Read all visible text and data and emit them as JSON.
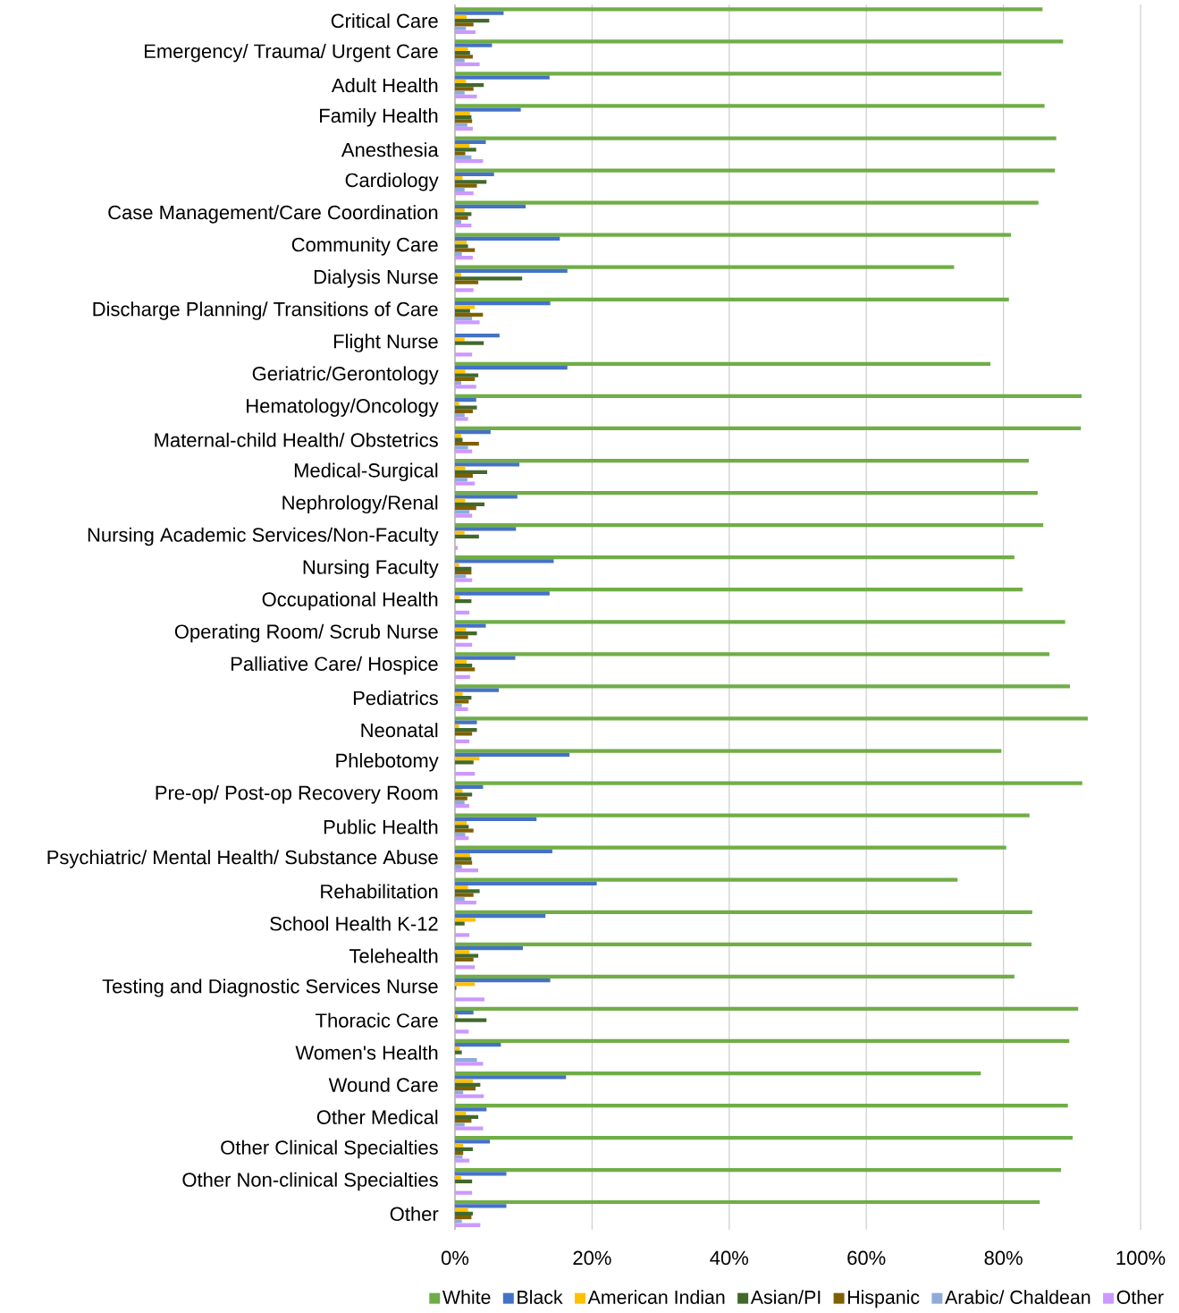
{
  "chart_data": {
    "type": "bar",
    "orientation": "horizontal",
    "grid": "x",
    "legend": "bottom",
    "categories": [
      "Critical Care",
      "Emergency/ Trauma/ Urgent Care",
      "Adult Health",
      "Family Health",
      "Anesthesia",
      "Cardiology",
      "Case Management/Care Coordination",
      "Community Care",
      "Dialysis Nurse",
      "Discharge Planning/ Transitions of Care",
      "Flight Nurse",
      "Geriatric/Gerontology",
      "Hematology/Oncology",
      "Maternal-child Health/ Obstetrics",
      "Medical-Surgical",
      "Nephrology/Renal",
      "Nursing Academic Services/Non-Faculty",
      "Nursing Faculty",
      "Occupational Health",
      "Operating Room/ Scrub Nurse",
      "Palliative Care/ Hospice",
      "Pediatrics",
      "Neonatal",
      "Phlebotomy",
      "Pre-op/ Post-op Recovery Room",
      "Public Health",
      "Psychiatric/ Mental Health/ Substance Abuse",
      "Rehabilitation",
      "School Health K-12",
      "Telehealth",
      "Testing and Diagnostic Services Nurse",
      "Thoracic Care",
      "Women's Health",
      "Wound Care",
      "Other Medical",
      "Other Clinical Specialties",
      "Other Non-clinical Specialties",
      "Other"
    ],
    "xlim": [
      0,
      100
    ],
    "xticks": [
      {
        "value": 0,
        "label": "0%"
      },
      {
        "value": 20,
        "label": "20%"
      },
      {
        "value": 40,
        "label": "40%"
      },
      {
        "value": 60,
        "label": "60%"
      },
      {
        "value": 80,
        "label": "80%"
      },
      {
        "value": 100,
        "label": "100%"
      }
    ],
    "series": [
      {
        "name": "White",
        "color": "#70ad47",
        "values": [
          85.7,
          88.7,
          79.7,
          86.0,
          87.7,
          87.5,
          85.1,
          81.1,
          72.8,
          80.8,
          0,
          78.1,
          91.4,
          91.3,
          83.7,
          85.0,
          85.8,
          81.6,
          82.8,
          89.0,
          86.7,
          89.7,
          92.3,
          79.7,
          91.5,
          83.8,
          80.4,
          73.3,
          84.2,
          84.1,
          81.6,
          90.9,
          89.6,
          76.7,
          89.4,
          90.1,
          88.4,
          85.3
        ]
      },
      {
        "name": "Black",
        "color": "#4472c4",
        "values": [
          7.1,
          5.4,
          13.8,
          9.6,
          4.5,
          5.7,
          10.3,
          15.3,
          16.4,
          13.9,
          6.5,
          16.4,
          3.1,
          5.2,
          9.4,
          9.1,
          8.9,
          14.4,
          13.8,
          4.5,
          8.8,
          6.4,
          3.2,
          16.7,
          4.1,
          11.9,
          14.2,
          20.7,
          13.2,
          9.9,
          13.9,
          2.7,
          6.7,
          16.2,
          4.6,
          5.1,
          7.5,
          7.5
        ]
      },
      {
        "name": "American Indian",
        "color": "#ffc000",
        "values": [
          1.7,
          1.9,
          1.6,
          2.2,
          2.1,
          1.1,
          1.4,
          1.7,
          0.9,
          2.9,
          1.4,
          1.5,
          0.6,
          0.9,
          1.5,
          1.5,
          1.4,
          0.6,
          0.7,
          1.6,
          1.7,
          1.1,
          0.6,
          3.6,
          1.1,
          1.7,
          2.2,
          1.9,
          3.0,
          2.1,
          2.9,
          0.4,
          0.7,
          2.6,
          1.6,
          1.2,
          0.9,
          1.9
        ]
      },
      {
        "name": "Asian/PI",
        "color": "#43682b",
        "values": [
          5.0,
          2.2,
          4.2,
          2.4,
          3.1,
          4.6,
          2.4,
          1.9,
          9.8,
          2.2,
          4.2,
          3.4,
          3.2,
          1.1,
          4.7,
          4.3,
          3.5,
          2.4,
          2.4,
          3.2,
          2.5,
          2.4,
          3.2,
          2.7,
          2.5,
          2.0,
          2.4,
          3.6,
          1.4,
          3.4,
          0.2,
          4.6,
          1.0,
          3.7,
          3.4,
          2.6,
          2.5,
          2.6
        ]
      },
      {
        "name": "Hispanic",
        "color": "#7f6000",
        "values": [
          2.7,
          2.6,
          2.7,
          2.5,
          1.5,
          3.2,
          1.9,
          2.9,
          3.4,
          4.1,
          0,
          2.9,
          2.6,
          3.5,
          2.6,
          3.1,
          0,
          2.4,
          0,
          1.9,
          2.9,
          2.0,
          2.5,
          0,
          1.8,
          2.7,
          2.5,
          2.7,
          0,
          2.7,
          0,
          0,
          0,
          3.0,
          2.4,
          1.2,
          0,
          2.4
        ]
      },
      {
        "name": "Arabic/ Chaldean",
        "color": "#8faadc",
        "values": [
          1.6,
          1.4,
          1.4,
          1.8,
          2.4,
          1.4,
          0.9,
          1.0,
          0,
          2.5,
          0,
          0.9,
          1.4,
          1.9,
          1.8,
          2.1,
          0,
          1.6,
          0,
          0,
          0,
          1.0,
          0,
          0,
          1.4,
          1.5,
          1.0,
          1.4,
          0,
          0,
          0,
          0,
          3.2,
          1.2,
          1.4,
          1.1,
          0,
          1.0
        ]
      },
      {
        "name": "Other",
        "color": "#cc99ff",
        "values": [
          3.0,
          3.6,
          3.2,
          2.6,
          4.1,
          2.7,
          2.4,
          2.6,
          2.7,
          3.6,
          2.5,
          3.1,
          1.9,
          2.5,
          2.9,
          2.5,
          0.4,
          2.5,
          2.1,
          2.5,
          2.2,
          1.9,
          2.1,
          2.9,
          2.1,
          2.0,
          3.4,
          3.1,
          2.1,
          2.9,
          4.3,
          2.0,
          4.1,
          4.2,
          4.1,
          2.1,
          2.5,
          3.7
        ]
      }
    ]
  }
}
